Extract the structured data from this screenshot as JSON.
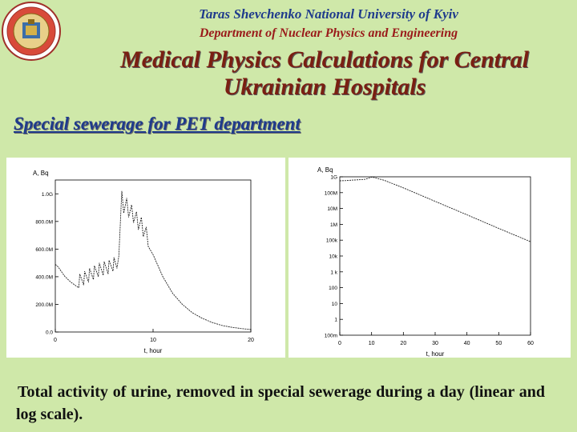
{
  "header": {
    "university": "Taras Shevchenko National University of Kyiv",
    "department": "Department of Nuclear Physics and Engineering",
    "title": "Medical Physics Calculations for Central Ukrainian Hospitals"
  },
  "section": {
    "bullet_mark": "",
    "heading": "Special sewerage for PET department"
  },
  "caption": {
    "text": "Total activity of urine, removed in special sewerage during a day (linear and log scale)."
  },
  "colors": {
    "background": "#cfe8a9",
    "title": "#7a1f12",
    "university": "#1f3b8c",
    "department": "#9a1a1a"
  },
  "chart_data": [
    {
      "type": "line",
      "title": "",
      "xlabel": "t, hour",
      "ylabel": "A, Bq",
      "xlim": [
        0,
        20
      ],
      "ylim": [
        0,
        1100000000.0
      ],
      "xticks": [
        "0",
        "10",
        "20"
      ],
      "yticks": [
        "0.0",
        "200.0M",
        "400.0M",
        "600.0M",
        "800.0M",
        "1.0G"
      ],
      "x": [
        0,
        0.3,
        0.7,
        1.0,
        1.3,
        1.6,
        2.0,
        2.4,
        2.5,
        2.9,
        3.0,
        3.4,
        3.5,
        3.9,
        4.0,
        4.4,
        4.5,
        4.9,
        5.0,
        5.4,
        5.5,
        5.9,
        6.0,
        6.3,
        6.5,
        6.8,
        7.0,
        7.3,
        7.5,
        7.8,
        8.0,
        8.3,
        8.5,
        8.8,
        9.0,
        9.3,
        9.5,
        10.0,
        10.5,
        11.0,
        12.0,
        13.0,
        14.0,
        15.0,
        16.0,
        17.0,
        18.0,
        19.0,
        20.0
      ],
      "values": [
        490000000,
        470000000,
        430000000,
        400000000,
        380000000,
        360000000,
        340000000,
        320000000,
        420000000,
        340000000,
        440000000,
        360000000,
        460000000,
        380000000,
        480000000,
        400000000,
        500000000,
        410000000,
        510000000,
        420000000,
        520000000,
        440000000,
        540000000,
        460000000,
        550000000,
        1020000000,
        860000000,
        970000000,
        830000000,
        920000000,
        790000000,
        870000000,
        740000000,
        830000000,
        690000000,
        760000000,
        620000000,
        560000000,
        480000000,
        400000000,
        280000000,
        200000000,
        140000000,
        100000000,
        70000000,
        48000000,
        35000000,
        25000000,
        18000000
      ]
    },
    {
      "type": "line",
      "title": "",
      "xlabel": "t, hour",
      "ylabel": "A, Bq",
      "xlim": [
        0,
        60
      ],
      "ylim": [
        0.1,
        1000000000
      ],
      "yscale": "log",
      "xticks": [
        "0",
        "10",
        "20",
        "30",
        "40",
        "50",
        "60"
      ],
      "yticks": [
        "100m",
        "1",
        "10",
        "100",
        "1 k",
        "10k",
        "100k",
        "1M",
        "10M",
        "100M",
        "1G"
      ],
      "x": [
        0,
        2,
        4,
        6,
        8,
        10,
        11,
        14,
        20,
        30,
        40,
        50,
        60
      ],
      "values": [
        560000000,
        580000000,
        620000000,
        650000000,
        700000000,
        950000000,
        880000000,
        600000000,
        200000000,
        28000000,
        4000000,
        550000,
        80000
      ]
    }
  ]
}
